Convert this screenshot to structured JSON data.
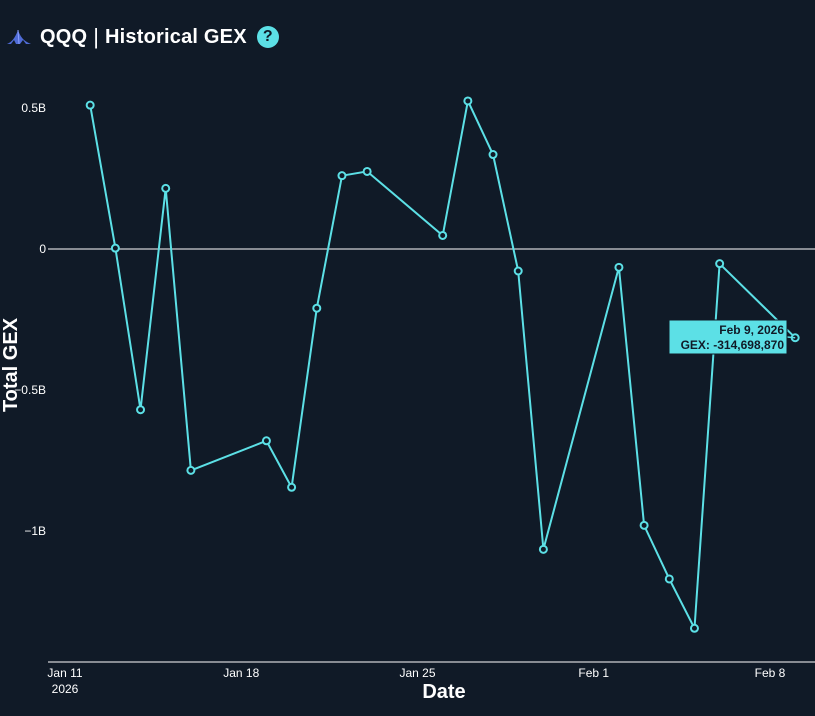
{
  "header": {
    "ticker": "QQQ",
    "separator": "|",
    "title": "Historical GEX",
    "help_icon": "?"
  },
  "colors": {
    "background": "#101a27",
    "accent": "#5ce0e6",
    "text": "#ffffff"
  },
  "tooltip": {
    "date": "Feb 9, 2026",
    "value": "GEX: -314,698,870"
  },
  "chart_data": {
    "type": "line",
    "xlabel": "Date",
    "ylabel": "Total GEX",
    "x_ticks": [
      {
        "date": "2026-01-11",
        "label": "Jan 11",
        "sublabel": "2026"
      },
      {
        "date": "2026-01-18",
        "label": "Jan 18"
      },
      {
        "date": "2026-01-25",
        "label": "Jan 25"
      },
      {
        "date": "2026-02-01",
        "label": "Feb 1"
      },
      {
        "date": "2026-02-08",
        "label": "Feb 8"
      }
    ],
    "y_ticks": [
      {
        "value": 500000000,
        "label": "0.5B"
      },
      {
        "value": 0,
        "label": "0"
      },
      {
        "value": -500000000,
        "label": "−0.5B"
      },
      {
        "value": -1000000000,
        "label": "−1B"
      }
    ],
    "xlim": [
      "2026-01-11",
      "2026-02-09"
    ],
    "ylim": [
      -1460000000,
      560000000
    ],
    "series": [
      {
        "x": [
          "2026-01-12",
          "2026-01-13",
          "2026-01-14",
          "2026-01-15",
          "2026-01-16",
          "2026-01-19",
          "2026-01-20",
          "2026-01-21",
          "2026-01-22",
          "2026-01-23",
          "2026-01-26",
          "2026-01-27",
          "2026-01-28",
          "2026-01-29",
          "2026-01-30",
          "2026-02-02",
          "2026-02-03",
          "2026-02-04",
          "2026-02-05",
          "2026-02-06",
          "2026-02-09"
        ],
        "values": [
          510000000,
          3000000,
          -570000000,
          215000000,
          -785000000,
          -680000000,
          -845000000,
          -210000000,
          260000000,
          275000000,
          48000000,
          525000000,
          335000000,
          -78000000,
          -1065000000,
          -65000000,
          -980000000,
          -1170000000,
          -1345000000,
          -52000000,
          -314698870
        ]
      }
    ],
    "grid": false,
    "zero_line": true,
    "legend": "none"
  }
}
